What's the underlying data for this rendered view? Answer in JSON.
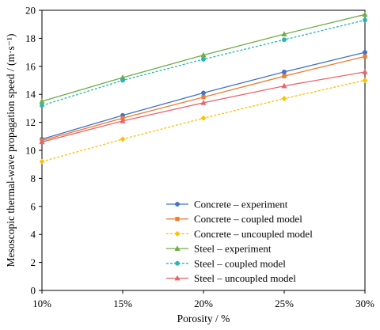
{
  "chart_data": {
    "type": "line",
    "x": [
      "10%",
      "15%",
      "20%",
      "25%",
      "30%"
    ],
    "xlabel": "Porosity / %",
    "ylabel": "Mesoscopic thermal-wave propagation speed / (m·s⁻¹)",
    "ylim": [
      0,
      20
    ],
    "yticks": [
      0,
      2,
      4,
      6,
      8,
      10,
      12,
      14,
      16,
      18,
      20
    ],
    "grid": false,
    "legend_position": "lower-right",
    "series": [
      {
        "name": "Concrete – experiment",
        "values": [
          10.8,
          12.5,
          14.1,
          15.6,
          17.0
        ],
        "color": "#4472C4",
        "marker": "circle",
        "dash": "solid"
      },
      {
        "name": "Concrete – coupled model",
        "values": [
          10.7,
          12.3,
          13.8,
          15.3,
          16.7
        ],
        "color": "#ED7D31",
        "marker": "square",
        "dash": "solid"
      },
      {
        "name": "Concrete – uncoupled model",
        "values": [
          9.2,
          10.8,
          12.3,
          13.7,
          15.0
        ],
        "color": "#FFC000",
        "marker": "diamond",
        "dash": "dashed"
      },
      {
        "name": "Steel – experiment",
        "values": [
          13.5,
          15.2,
          16.8,
          18.3,
          19.7
        ],
        "color": "#70AD47",
        "marker": "triangle",
        "dash": "solid"
      },
      {
        "name": "Steel – coupled model",
        "values": [
          13.2,
          15.0,
          16.5,
          17.9,
          19.3
        ],
        "color": "#2BB5B5",
        "marker": "circle",
        "dash": "dashed"
      },
      {
        "name": "Steel – uncoupled model",
        "values": [
          10.6,
          12.1,
          13.4,
          14.6,
          15.6
        ],
        "color": "#E8656D",
        "marker": "triangle",
        "dash": "solid"
      }
    ]
  }
}
